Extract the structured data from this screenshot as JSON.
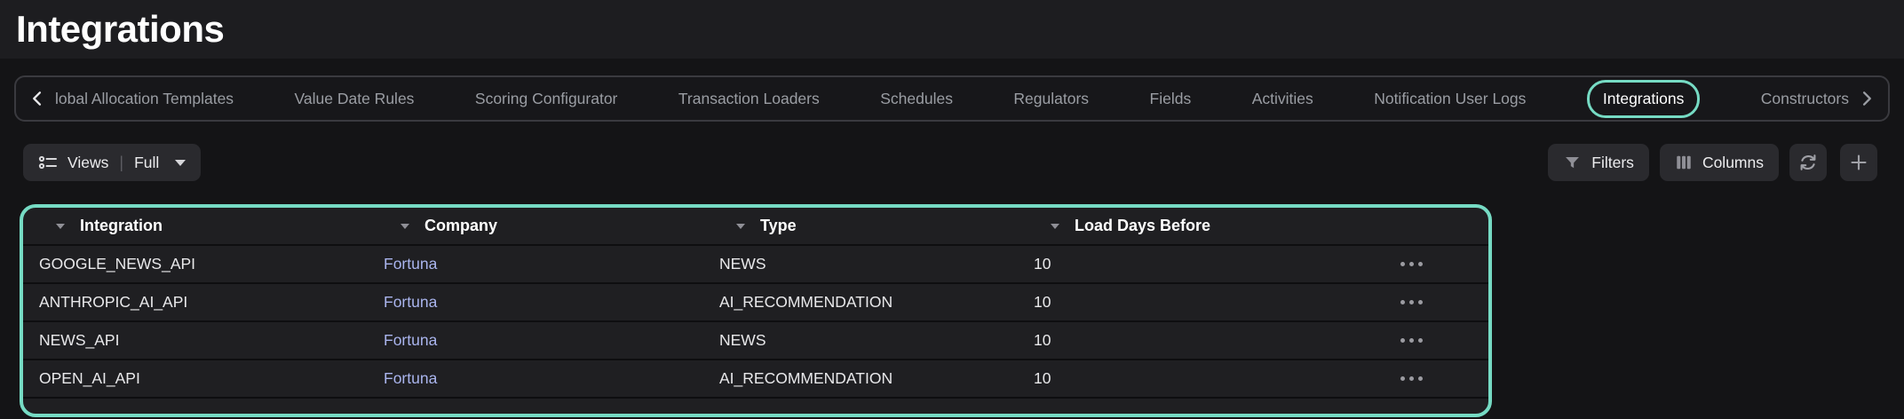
{
  "page": {
    "title": "Integrations"
  },
  "tab_bar": {
    "left_scroll_icon": "chevron-left-icon",
    "right_scroll_icon": "chevron-right-icon",
    "active_tab": "Integrations",
    "tabs": [
      {
        "label": "lobal Allocation Templates",
        "active": false
      },
      {
        "label": "Value Date Rules",
        "active": false
      },
      {
        "label": "Scoring Configurator",
        "active": false
      },
      {
        "label": "Transaction Loaders",
        "active": false
      },
      {
        "label": "Schedules",
        "active": false
      },
      {
        "label": "Regulators",
        "active": false
      },
      {
        "label": "Fields",
        "active": false
      },
      {
        "label": "Activities",
        "active": false
      },
      {
        "label": "Notification User Logs",
        "active": false
      },
      {
        "label": "Integrations",
        "active": true
      },
      {
        "label": "Constructors",
        "active": false
      }
    ]
  },
  "toolbar": {
    "views_label": "Views",
    "views_divider": "|",
    "views_value": "Full",
    "views_icon": "list-views-icon",
    "filters_label": "Filters",
    "filters_icon": "funnel-icon",
    "columns_label": "Columns",
    "columns_icon": "columns-icon",
    "refresh_icon": "refresh-icon",
    "add_icon": "plus-icon"
  },
  "table": {
    "columns": [
      "Integration",
      "Company",
      "Type",
      "Load Days Before"
    ],
    "header_sort_icon": "caret-down-icon",
    "row_menu_icon": "ellipsis-icon",
    "rows": [
      {
        "integration": "GOOGLE_NEWS_API",
        "company": "Fortuna",
        "type": "NEWS",
        "load_days_before": "10"
      },
      {
        "integration": "ANTHROPIC_AI_API",
        "company": "Fortuna",
        "type": "AI_RECOMMENDATION",
        "load_days_before": "10"
      },
      {
        "integration": "NEWS_API",
        "company": "Fortuna",
        "type": "NEWS",
        "load_days_before": "10"
      },
      {
        "integration": "OPEN_AI_API",
        "company": "Fortuna",
        "type": "AI_RECOMMENDATION",
        "load_days_before": "10"
      }
    ]
  },
  "colors": {
    "accent_teal": "#76dbc4",
    "link_purple": "#aab5ee",
    "page_bg": "#141416",
    "title_band_bg": "#1d1d20",
    "panel_bg": "#1f1f22",
    "button_bg": "#2a2a2e",
    "tab_text": "#9a9da3",
    "row_separator": "#0e0e10"
  }
}
